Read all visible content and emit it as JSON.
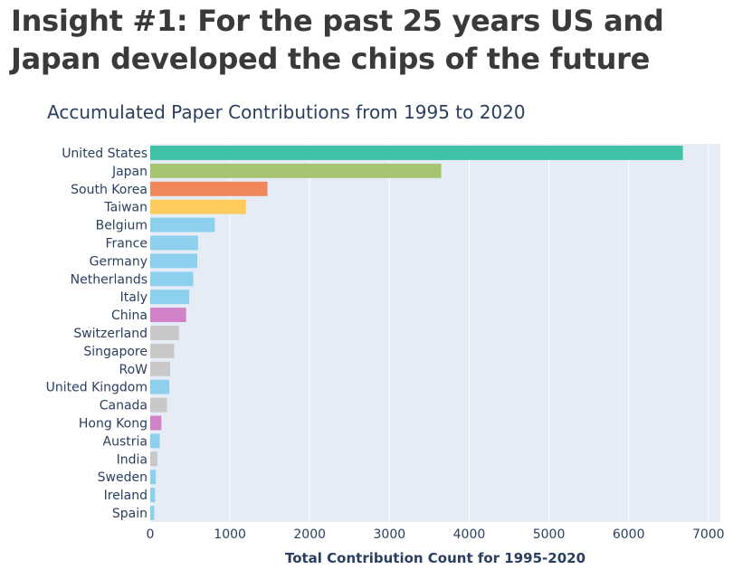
{
  "headline": "Insight #1: For the past 25 years US and Japan developed the chips of the future",
  "colors": {
    "us": "#3ec1a7",
    "japan": "#a5c571",
    "south_korea": "#f0875a",
    "taiwan": "#fdcb5c",
    "europe_blue": "#8dd0ee",
    "china_pink": "#d282c8",
    "other_gray": "#c8c8c8",
    "plot_bg": "#e5ecf6"
  },
  "chart_data": {
    "type": "bar",
    "orientation": "horizontal",
    "title": "Accumulated Paper Contributions from 1995 to 2020",
    "xlabel": "Total Contribution Count for 1995-2020",
    "ylabel": "",
    "xlim": [
      0,
      7150
    ],
    "xticks": [
      0,
      1000,
      2000,
      3000,
      4000,
      5000,
      6000,
      7000
    ],
    "grid": true,
    "legend": "none",
    "categories": [
      "United States",
      "Japan",
      "South Korea",
      "Taiwan",
      "Belgium",
      "France",
      "Germany",
      "Netherlands",
      "Italy",
      "China",
      "Switzerland",
      "Singapore",
      "RoW",
      "United Kingdom",
      "Canada",
      "Hong Kong",
      "Austria",
      "India",
      "Sweden",
      "Ireland",
      "Spain"
    ],
    "values": [
      6680,
      3650,
      1470,
      1200,
      810,
      600,
      590,
      540,
      490,
      450,
      360,
      300,
      250,
      240,
      210,
      140,
      120,
      90,
      70,
      60,
      50
    ],
    "bar_colors": [
      "#3ec1a7",
      "#a5c571",
      "#f0875a",
      "#fdcb5c",
      "#8dd0ee",
      "#8dd0ee",
      "#8dd0ee",
      "#8dd0ee",
      "#8dd0ee",
      "#d282c8",
      "#c8c8c8",
      "#c8c8c8",
      "#c8c8c8",
      "#8dd0ee",
      "#c8c8c8",
      "#d282c8",
      "#8dd0ee",
      "#c8c8c8",
      "#8dd0ee",
      "#8dd0ee",
      "#8dd0ee"
    ]
  }
}
